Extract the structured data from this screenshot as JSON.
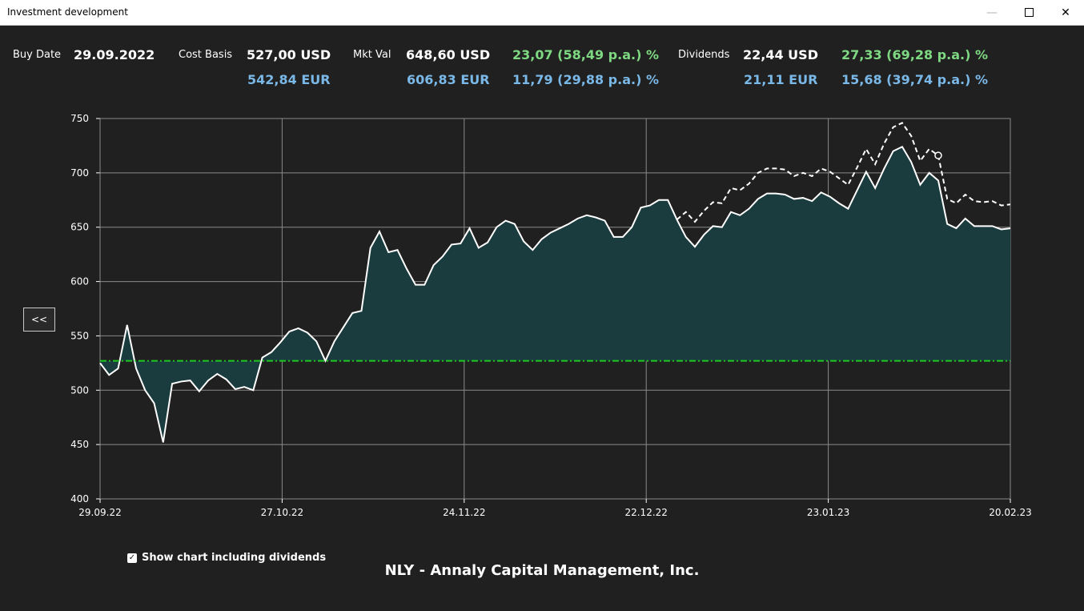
{
  "window": {
    "title": "Investment development"
  },
  "summary": {
    "buy_date_label": "Buy Date",
    "buy_date": "29.09.2022",
    "cost_basis_label": "Cost Basis",
    "cost_basis_usd": "527,00 USD",
    "cost_basis_eur": "542,84 EUR",
    "mkt_val_label": "Mkt Val",
    "mkt_val_usd": "648,60 USD",
    "mkt_val_eur": "606,83 EUR",
    "mkt_gain_usd": "23,07 (58,49 p.a.) %",
    "mkt_gain_eur": "11,79 (29,88 p.a.) %",
    "dividends_label": "Dividends",
    "dividends_usd": "22,44 USD",
    "dividends_eur": "21,11 EUR",
    "div_gain_usd": "27,33 (69,28 p.a.) %",
    "div_gain_eur": "15,68 (39,74 p.a.) %"
  },
  "collapse_button": {
    "label": "<<"
  },
  "checkbox": {
    "label": "Show chart including dividends",
    "checked": true
  },
  "footer": {
    "title": "NLY - Annaly Capital Management, Inc."
  },
  "colors": {
    "area_fill": "#1a3c3e",
    "line": "#ffffff",
    "cost_line": "#1ec81e",
    "grid": "#8a8a8a",
    "accent_green": "#7ed982",
    "accent_blue": "#7ab8e8"
  },
  "chart_data": {
    "type": "area",
    "x_ticks": [
      "29.09.22",
      "27.10.22",
      "24.11.22",
      "22.12.22",
      "23.01.23",
      "20.02.23"
    ],
    "x_range_days": [
      0,
      144
    ],
    "y_ticks": [
      400,
      450,
      500,
      550,
      600,
      650,
      700,
      750
    ],
    "ylim": [
      400,
      750
    ],
    "grid": true,
    "cost_basis_line": 527,
    "series": [
      {
        "style": "solid-area",
        "values": [
          525,
          514,
          520,
          560,
          520,
          500,
          488,
          452,
          506,
          508,
          509,
          499,
          509,
          515,
          510,
          501,
          503,
          500,
          530,
          535,
          544,
          554,
          557,
          553,
          545,
          527,
          545,
          558,
          571,
          573,
          631,
          646,
          627,
          629,
          612,
          597,
          597,
          615,
          623,
          634,
          635,
          649,
          631,
          636,
          650,
          656,
          653,
          637,
          629,
          639,
          645,
          649,
          653,
          658,
          661,
          659,
          656,
          641,
          641,
          650,
          668,
          670,
          675,
          675,
          657,
          641,
          632,
          643,
          651,
          650,
          664,
          661,
          667,
          676,
          681,
          681,
          680,
          676,
          677,
          674,
          682,
          678,
          672,
          667,
          684,
          701,
          686,
          704,
          720,
          724,
          710,
          689,
          700,
          693,
          653,
          649,
          658,
          651,
          651,
          651,
          648,
          649
        ]
      },
      {
        "style": "dashed",
        "start_index": 64,
        "values": [
          657,
          664,
          655,
          665,
          673,
          672,
          686,
          684,
          690,
          700,
          704,
          704,
          703,
          697,
          700,
          697,
          704,
          701,
          695,
          689,
          705,
          722,
          708,
          727,
          742,
          746,
          734,
          711,
          722,
          716,
          676,
          672,
          680,
          674,
          673,
          674,
          670,
          671
        ]
      }
    ]
  }
}
